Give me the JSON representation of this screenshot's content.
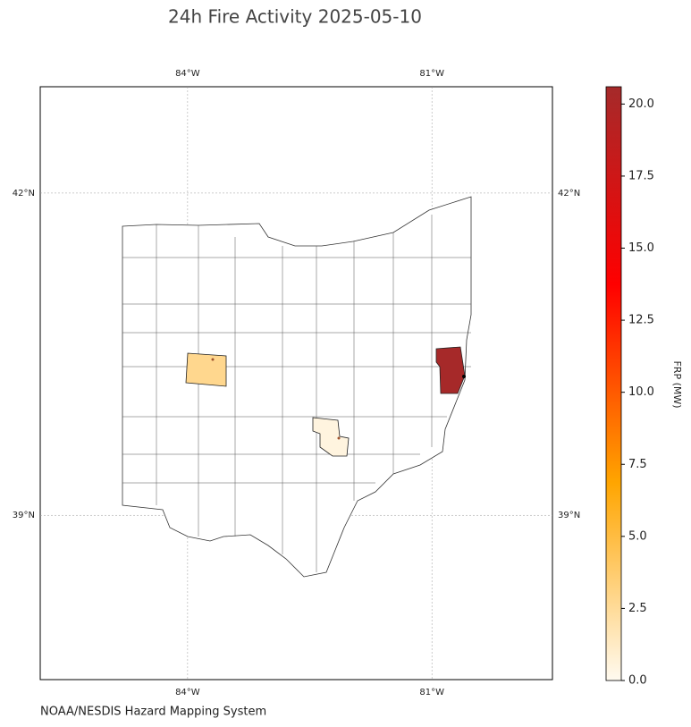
{
  "chart_data": {
    "type": "choropleth",
    "title": "24h Fire Activity 2025-05-10",
    "source": "NOAA/NESDIS Hazard Mapping System",
    "categories": [
      null,
      null,
      null
    ],
    "values": [
      20.5,
      2.8,
      0.5
    ],
    "xlim": [
      -85.81,
      -79.52
    ],
    "ylim": [
      37.47,
      42.99
    ],
    "xticks": [
      {
        "value": -84,
        "label": "84°W"
      },
      {
        "value": -81,
        "label": "81°W"
      }
    ],
    "yticks": [
      {
        "value": 39,
        "label": "39°N"
      },
      {
        "value": 42,
        "label": "42°N"
      }
    ],
    "grid": true,
    "colorbar": {
      "label": "FRP (MW)",
      "lim": [
        0,
        20.6
      ],
      "ticks": [
        {
          "value": 0,
          "label": "0.0"
        },
        2.5,
        {
          "value": 5,
          "label": "5.0"
        },
        7.5,
        {
          "value": 10,
          "label": "10.0"
        },
        12.5,
        {
          "value": 15,
          "label": "15.0"
        },
        17.5,
        {
          "value": 20,
          "label": "20.0"
        }
      ],
      "colors": [
        "#fffaf0",
        "#ffa500",
        "#ff0000",
        "#a52a2a"
      ]
    }
  }
}
